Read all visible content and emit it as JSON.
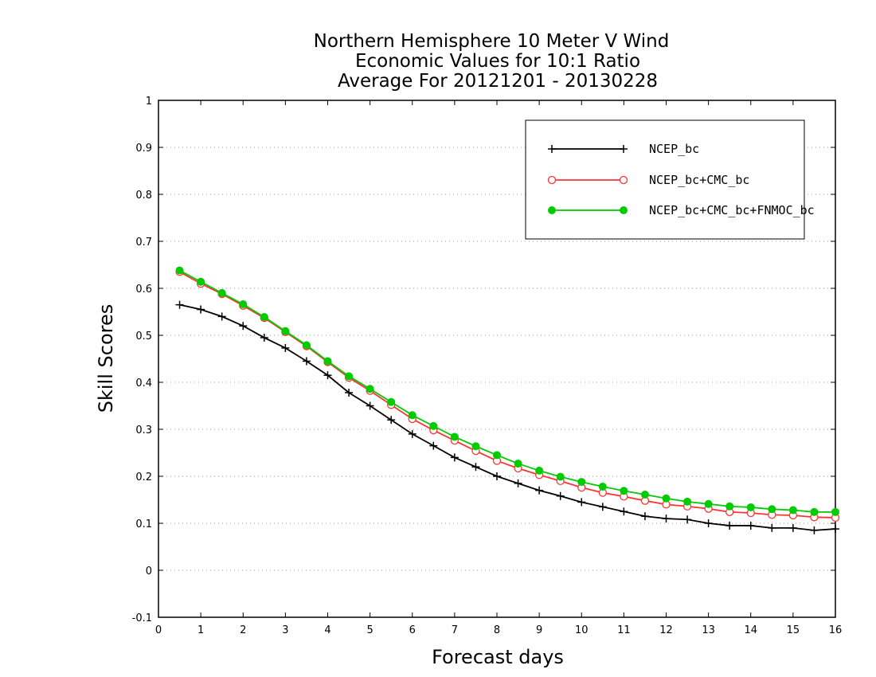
{
  "chart_data": {
    "type": "line",
    "title_lines": [
      "Northern Hemisphere 10 Meter V Wind",
      "Economic Values for 10:1 Ratio",
      "Average For 20121201 - 20130228"
    ],
    "xlabel": "Forecast days",
    "ylabel": "Skill Scores",
    "xlim": [
      0,
      16
    ],
    "ylim": [
      -0.1,
      1
    ],
    "xticks": [
      "0",
      "1",
      "2",
      "3",
      "4",
      "5",
      "6",
      "7",
      "8",
      "9",
      "10",
      "11",
      "12",
      "13",
      "14",
      "15",
      "16"
    ],
    "yticks": [
      "-0.1",
      "0",
      "0.1",
      "0.2",
      "0.3",
      "0.4",
      "0.5",
      "0.6",
      "0.7",
      "0.8",
      "0.9",
      "1"
    ],
    "grid": "horizontal dotted",
    "legend_position": "top-right",
    "x": [
      0.5,
      1,
      1.5,
      2,
      2.5,
      3,
      3.5,
      4,
      4.5,
      5,
      5.5,
      6,
      6.5,
      7,
      7.5,
      8,
      8.5,
      9,
      9.5,
      10,
      10.5,
      11,
      11.5,
      12,
      12.5,
      13,
      13.5,
      14,
      14.5,
      15,
      15.5,
      16
    ],
    "series": [
      {
        "name": "NCEP_bc",
        "color": "#000000",
        "marker": "plus",
        "values": [
          0.565,
          0.555,
          0.54,
          0.52,
          0.495,
          0.473,
          0.445,
          0.415,
          0.378,
          0.35,
          0.32,
          0.29,
          0.265,
          0.24,
          0.22,
          0.2,
          0.185,
          0.17,
          0.158,
          0.145,
          0.135,
          0.125,
          0.115,
          0.11,
          0.108,
          0.1,
          0.095,
          0.095,
          0.09,
          0.09,
          0.085,
          0.088
        ]
      },
      {
        "name": "NCEP_bc+CMC_bc",
        "color": "#ff3333",
        "marker": "open-circle",
        "values": [
          0.635,
          0.61,
          0.588,
          0.563,
          0.537,
          0.507,
          0.477,
          0.443,
          0.41,
          0.382,
          0.352,
          0.322,
          0.298,
          0.276,
          0.254,
          0.233,
          0.217,
          0.203,
          0.19,
          0.176,
          0.165,
          0.157,
          0.148,
          0.14,
          0.136,
          0.131,
          0.124,
          0.122,
          0.118,
          0.117,
          0.113,
          0.112
        ]
      },
      {
        "name": "NCEP_bc+CMC_bc+FNMOC_bc",
        "color": "#00cc00",
        "marker": "filled-circle",
        "values": [
          0.638,
          0.614,
          0.59,
          0.566,
          0.539,
          0.509,
          0.479,
          0.445,
          0.413,
          0.386,
          0.358,
          0.33,
          0.307,
          0.284,
          0.264,
          0.245,
          0.227,
          0.212,
          0.199,
          0.188,
          0.178,
          0.169,
          0.161,
          0.153,
          0.146,
          0.141,
          0.136,
          0.134,
          0.13,
          0.128,
          0.124,
          0.124
        ]
      }
    ]
  }
}
